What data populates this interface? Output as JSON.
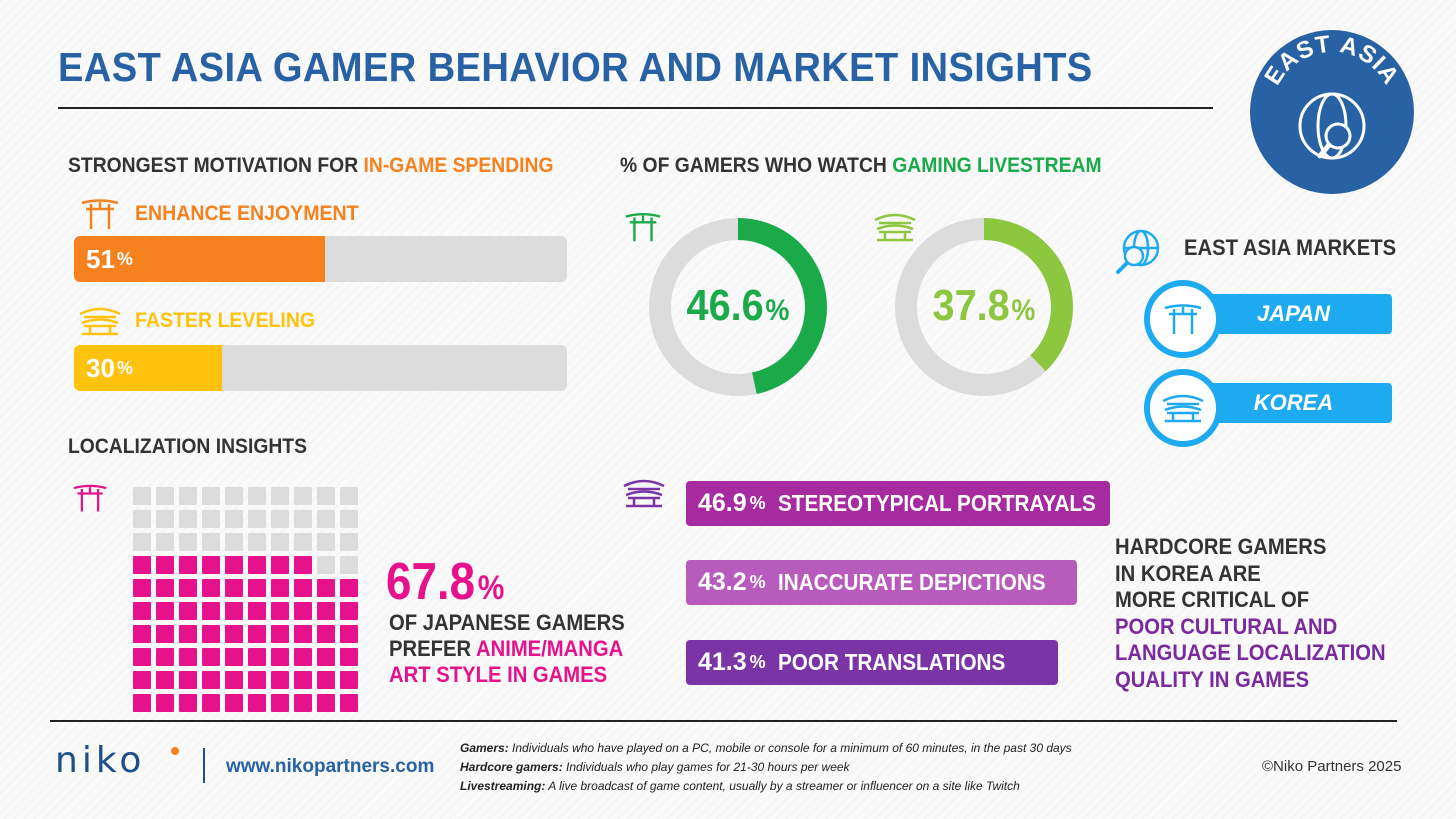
{
  "title": "EAST ASIA GAMER BEHAVIOR AND MARKET INSIGHTS",
  "badge": {
    "text": "EAST ASIA",
    "color": "#2861a4"
  },
  "spending": {
    "heading_prefix": "STRONGEST MOTIVATION FOR ",
    "heading_highlight": "IN-GAME SPENDING",
    "items": [
      {
        "label": "ENHANCE ENJOYMENT",
        "value": "51",
        "pct": "%",
        "fill": 51,
        "color": "#f5821f",
        "icon": "torii-gate-icon"
      },
      {
        "label": "FASTER LEVELING",
        "value": "30",
        "pct": "%",
        "fill": 30,
        "color": "#ffc20e",
        "icon": "korean-palace-icon"
      }
    ]
  },
  "livestream": {
    "heading_prefix": "% OF GAMERS WHO WATCH ",
    "heading_highlight": "GAMING LIVESTREAM",
    "donuts": [
      {
        "value": "46.6",
        "pct": "%",
        "fraction": 0.466,
        "color": "#1aaa4a",
        "icon": "torii-gate-icon"
      },
      {
        "value": "37.8",
        "pct": "%",
        "fraction": 0.378,
        "color": "#8dc63f",
        "icon": "korean-palace-icon"
      }
    ]
  },
  "markets": {
    "heading": "EAST ASIA MARKETS",
    "items": [
      {
        "label": "JAPAN",
        "icon": "torii-gate-icon"
      },
      {
        "label": "KOREA",
        "icon": "korean-palace-icon"
      }
    ],
    "color": "#1eaaf1"
  },
  "localization": {
    "heading": "LOCALIZATION INSIGHTS",
    "stat_value": "67.8",
    "stat_pct": "%",
    "waffle_total": 100,
    "waffle_filled": 68,
    "line1": "OF JAPANESE GAMERS",
    "line2_prefix": "PREFER ",
    "line2_highlight": "ANIME/MANGA",
    "line3": "ART STYLE IN GAMES",
    "accent": "#e6128c"
  },
  "korea_localization": {
    "items": [
      {
        "value": "46.9",
        "pct": "%",
        "label": "STEREOTYPICAL PORTRAYALS",
        "color": "#a72ba0"
      },
      {
        "value": "43.2",
        "pct": "%",
        "label": "INACCURATE DEPICTIONS",
        "color": "#b75bbc"
      },
      {
        "value": "41.3",
        "pct": "%",
        "label": "POOR TRANSLATIONS",
        "color": "#7a34a6"
      }
    ],
    "note_lines": [
      "HARDCORE GAMERS",
      "IN KOREA ARE",
      "MORE CRITICAL OF"
    ],
    "note_highlight_lines": [
      "POOR CULTURAL AND",
      "LANGUAGE LOCALIZATION",
      "QUALITY IN GAMES"
    ]
  },
  "footer": {
    "logo": "niko",
    "url": "www.nikopartners.com",
    "definitions": [
      {
        "term": "Gamers:",
        "text": " Individuals who have played on a PC, mobile or console for a minimum of 60 minutes, in the past 30 days"
      },
      {
        "term": "Hardcore gamers:",
        "text": " Individuals who play games for 21-30 hours per week"
      },
      {
        "term": "Livestreaming:",
        "text": " A live broadcast of game content, usually by a streamer or influencer on a site like Twitch"
      }
    ],
    "copyright": "©Niko Partners 2025"
  }
}
